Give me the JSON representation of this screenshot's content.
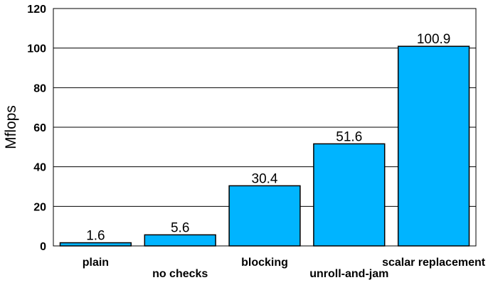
{
  "chart_data": {
    "type": "bar",
    "title": "",
    "xlabel": "",
    "ylabel": "Mflops",
    "ylim": [
      0,
      120
    ],
    "yticks": [
      0,
      20,
      40,
      60,
      80,
      100,
      120
    ],
    "grid": true,
    "categories": [
      "plain",
      "no checks",
      "blocking",
      "unroll-and-jam",
      "scalar replacement"
    ],
    "values": [
      1.6,
      5.6,
      30.4,
      51.6,
      100.9
    ],
    "data_labels": [
      "1.6",
      "5.6",
      "30.4",
      "51.6",
      "100.9"
    ],
    "bar_color": "#00b4ff",
    "bar_edge_color": "#000000"
  }
}
